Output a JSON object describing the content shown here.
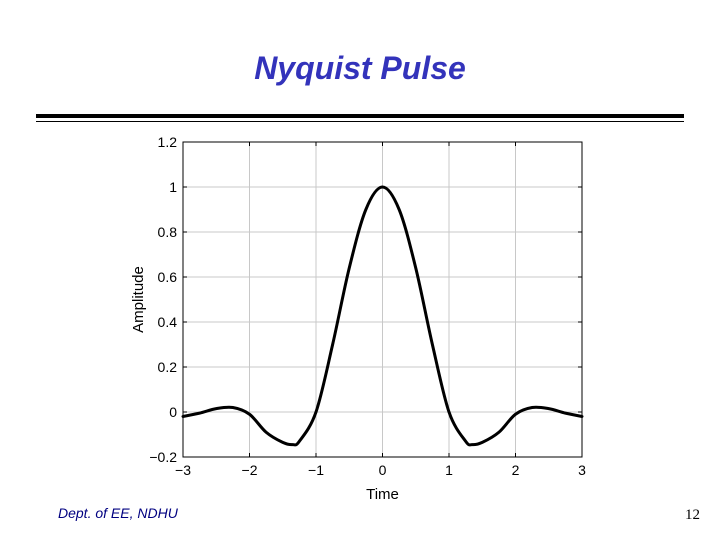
{
  "slide": {
    "title": "Nyquist Pulse",
    "footer_left": "Dept. of EE, NDHU",
    "page_number": "12"
  },
  "colors": {
    "title": "#3333bb",
    "curve": "#000000",
    "grid": "#c8c8c8",
    "footer_left": "#000080"
  },
  "chart_data": {
    "type": "line",
    "title": "",
    "xlabel": "Time",
    "ylabel": "Amplitude",
    "xlim": [
      -3,
      3
    ],
    "ylim": [
      -0.2,
      1.2
    ],
    "grid": true,
    "x_ticks": [
      -3,
      -2,
      -1,
      0,
      1,
      2,
      3
    ],
    "x_tick_labels": [
      "−3",
      "−2",
      "−1",
      "0",
      "1",
      "2",
      "3"
    ],
    "y_ticks": [
      -0.2,
      0,
      0.2,
      0.4,
      0.6,
      0.8,
      1,
      1.2
    ],
    "y_tick_labels": [
      "−0.2",
      "0",
      "0.2",
      "0.4",
      "0.6",
      "0.8",
      "1",
      "1.2"
    ],
    "series": [
      {
        "x": [
          -3.0,
          -2.75,
          -2.5,
          -2.25,
          -2.0,
          -1.75,
          -1.5,
          -1.35,
          -1.25,
          -1.0,
          -0.75,
          -0.5,
          -0.25,
          0.0,
          0.25,
          0.5,
          0.75,
          1.0,
          1.25,
          1.35,
          1.5,
          1.75,
          2.0,
          2.25,
          2.5,
          2.75,
          3.0
        ],
        "y": [
          -0.02,
          -0.005,
          0.015,
          0.02,
          -0.01,
          -0.09,
          -0.135,
          -0.145,
          -0.13,
          0.0,
          0.3,
          0.64,
          0.9,
          1.0,
          0.9,
          0.64,
          0.3,
          0.0,
          -0.13,
          -0.145,
          -0.135,
          -0.09,
          -0.01,
          0.02,
          0.015,
          -0.005,
          -0.02
        ]
      }
    ]
  }
}
